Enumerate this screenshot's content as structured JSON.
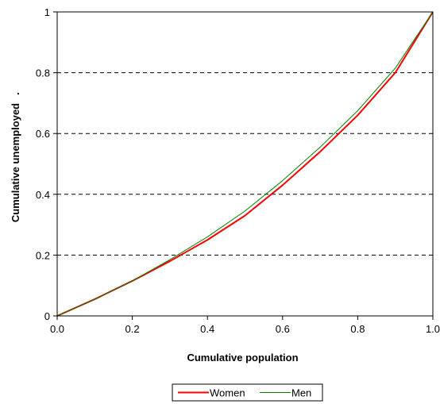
{
  "chart_data": {
    "type": "line",
    "xlabel": "Cumulative population",
    "ylabel": "Cumulative unemployed",
    "ylabel_suffix": ".",
    "xlim": [
      0,
      1
    ],
    "ylim": [
      0,
      1
    ],
    "x_ticks": [
      0,
      0.2,
      0.4,
      0.6,
      0.8,
      1.0
    ],
    "x_tick_labels": [
      "0.0",
      "0.2",
      "0.4",
      "0.6",
      "0.8",
      "1.0"
    ],
    "y_ticks": [
      0,
      0.2,
      0.4,
      0.6,
      0.8,
      1
    ],
    "y_tick_labels": [
      "0",
      "0.2",
      "0.4",
      "0.6",
      "0.8",
      "1"
    ],
    "grid": "horizontal dashed",
    "legend_position": "bottom",
    "series": [
      {
        "name": "Women",
        "color": "#ff0000",
        "x": [
          0,
          0.1,
          0.2,
          0.3,
          0.4,
          0.5,
          0.6,
          0.7,
          0.8,
          0.9,
          1.0
        ],
        "y": [
          0,
          0.055,
          0.115,
          0.18,
          0.25,
          0.33,
          0.43,
          0.54,
          0.66,
          0.8,
          1.0
        ]
      },
      {
        "name": "Men",
        "color": "#008000",
        "x": [
          0,
          0.1,
          0.2,
          0.3,
          0.4,
          0.5,
          0.6,
          0.7,
          0.8,
          0.9,
          1.0
        ],
        "y": [
          0,
          0.055,
          0.115,
          0.185,
          0.26,
          0.345,
          0.445,
          0.555,
          0.675,
          0.815,
          1.0
        ]
      }
    ]
  }
}
